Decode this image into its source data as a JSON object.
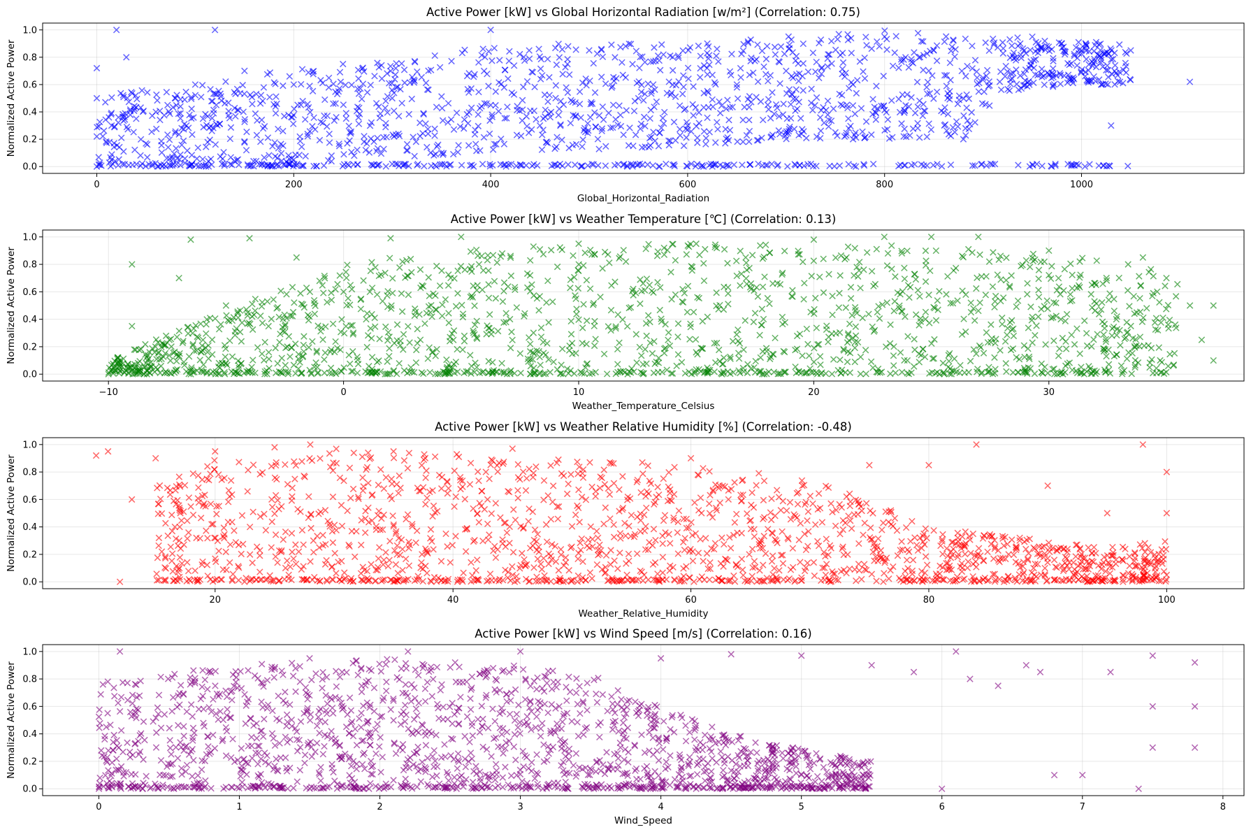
{
  "chart_data": [
    {
      "type": "scatter",
      "title": "Active Power [kW] vs Global Horizontal Radiation [w/m²] (Correlation: 0.75)",
      "xlabel": "Global_Horizontal_Radiation",
      "ylabel": "Normalized Active Power",
      "xlim": [
        -55,
        1165
      ],
      "ylim": [
        -0.05,
        1.05
      ],
      "xticks": [
        0,
        200,
        400,
        600,
        800,
        1000
      ],
      "yticks": [
        0.0,
        0.2,
        0.4,
        0.6,
        0.8,
        1.0
      ],
      "color": "#0000ff",
      "marker": "x",
      "alpha": 0.6,
      "grid": true,
      "correlation": 0.75,
      "series": [
        {
          "points": [
            [
              0,
              0
            ],
            [
              0,
              0.22
            ],
            [
              0,
              0.5
            ],
            [
              0,
              0.72
            ],
            [
              15,
              0.3
            ],
            [
              20,
              1.0
            ],
            [
              25,
              0.21
            ],
            [
              30,
              0.8
            ],
            [
              40,
              0.35
            ],
            [
              60,
              0.4
            ],
            [
              80,
              0.5
            ],
            [
              100,
              0.6
            ],
            [
              120,
              1.0
            ],
            [
              150,
              0.7
            ],
            [
              200,
              0.6
            ],
            [
              200,
              0.05
            ],
            [
              250,
              0.75
            ],
            [
              300,
              0.5
            ],
            [
              350,
              0.1
            ],
            [
              400,
              1.0
            ],
            [
              400,
              0.45
            ],
            [
              450,
              0.3
            ],
            [
              500,
              0.85
            ],
            [
              550,
              0.5
            ],
            [
              600,
              0.3
            ],
            [
              620,
              0.9
            ],
            [
              650,
              0.6
            ],
            [
              700,
              0.7
            ],
            [
              750,
              0.25
            ],
            [
              800,
              0.95
            ],
            [
              850,
              0.85
            ],
            [
              880,
              0.2
            ],
            [
              900,
              0.65
            ],
            [
              950,
              0.95
            ],
            [
              980,
              0.9
            ],
            [
              1000,
              0.85
            ],
            [
              1020,
              0.6
            ],
            [
              1030,
              0.3
            ],
            [
              1050,
              0.85
            ],
            [
              1110,
              0.62
            ]
          ],
          "envelope": [
            [
              0,
              0.0,
              0.7
            ],
            [
              50,
              0.0,
              0.55
            ],
            [
              100,
              0.0,
              0.6
            ],
            [
              200,
              0.0,
              0.72
            ],
            [
              250,
              0.05,
              0.72
            ],
            [
              400,
              0.1,
              0.9
            ],
            [
              600,
              0.15,
              0.9
            ],
            [
              700,
              0.2,
              0.95
            ],
            [
              800,
              0.2,
              1.0
            ],
            [
              880,
              0.2,
              0.95
            ],
            [
              920,
              0.55,
              0.95
            ],
            [
              1000,
              0.6,
              0.92
            ],
            [
              1050,
              0.6,
              0.9
            ]
          ]
        }
      ]
    },
    {
      "type": "scatter",
      "title": "Active Power [kW] vs Weather Temperature [℃] (Correlation: 0.13)",
      "xlabel": "Weather_Temperature_Celsius",
      "ylabel": "Normalized Active Power",
      "xlim": [
        -12.8,
        38.3
      ],
      "ylim": [
        -0.05,
        1.05
      ],
      "xticks": [
        -10,
        0,
        10,
        20,
        30
      ],
      "yticks": [
        0.0,
        0.2,
        0.4,
        0.6,
        0.8,
        1.0
      ],
      "color": "#008000",
      "marker": "x",
      "alpha": 0.6,
      "grid": true,
      "correlation": 0.13,
      "series": [
        {
          "points": [
            [
              -10,
              0
            ],
            [
              -9.5,
              0.1
            ],
            [
              -9,
              0.8
            ],
            [
              -9,
              0.35
            ],
            [
              -8,
              0.2
            ],
            [
              -7,
              0.7
            ],
            [
              -6.5,
              0.98
            ],
            [
              -5,
              0.5
            ],
            [
              -4,
              0.99
            ],
            [
              -2,
              0.85
            ],
            [
              0,
              0.6
            ],
            [
              2,
              0.99
            ],
            [
              5,
              1.0
            ],
            [
              10,
              0.95
            ],
            [
              15,
              0.95
            ],
            [
              20,
              0.98
            ],
            [
              23,
              1.0
            ],
            [
              25,
              1.0
            ],
            [
              27,
              1.0
            ],
            [
              30,
              0.9
            ],
            [
              34,
              0.85
            ],
            [
              35,
              0.7
            ],
            [
              36,
              0.5
            ],
            [
              36.5,
              0.25
            ],
            [
              37,
              0.1
            ],
            [
              37,
              0.5
            ]
          ],
          "envelope": [
            [
              -10,
              0.0,
              0.1
            ],
            [
              -6,
              0.0,
              0.4
            ],
            [
              -3,
              0.0,
              0.6
            ],
            [
              0,
              0.0,
              0.8
            ],
            [
              2,
              0.0,
              0.85
            ],
            [
              5,
              0.0,
              0.9
            ],
            [
              10,
              0.0,
              0.95
            ],
            [
              20,
              0.0,
              0.95
            ],
            [
              25,
              0.0,
              0.93
            ],
            [
              30,
              0.0,
              0.88
            ],
            [
              34,
              0.0,
              0.8
            ],
            [
              35.5,
              0.05,
              0.7
            ]
          ]
        }
      ]
    },
    {
      "type": "scatter",
      "title": "Active Power [kW] vs Weather Relative Humidity [%] (Correlation: -0.48)",
      "xlabel": "Weather_Relative_Humidity",
      "ylabel": "Normalized Active Power",
      "xlim": [
        5.5,
        106.5
      ],
      "ylim": [
        -0.05,
        1.05
      ],
      "xticks": [
        20,
        40,
        60,
        80,
        100
      ],
      "yticks": [
        0.0,
        0.2,
        0.4,
        0.6,
        0.8,
        1.0
      ],
      "color": "#ff0000",
      "marker": "x",
      "alpha": 0.6,
      "grid": true,
      "correlation": -0.48,
      "series": [
        {
          "points": [
            [
              10,
              0.92
            ],
            [
              11,
              0.95
            ],
            [
              12,
              0.0
            ],
            [
              13,
              0.6
            ],
            [
              15,
              0.9
            ],
            [
              17,
              0.1
            ],
            [
              20,
              0.95
            ],
            [
              25,
              0.98
            ],
            [
              28,
              1.0
            ],
            [
              35,
              0.95
            ],
            [
              45,
              0.97
            ],
            [
              60,
              0.9
            ],
            [
              75,
              0.85
            ],
            [
              80,
              0.85
            ],
            [
              84,
              1.0
            ],
            [
              90,
              0.7
            ],
            [
              95,
              0.5
            ],
            [
              98,
              1.0
            ],
            [
              100,
              0.8
            ],
            [
              100,
              0.5
            ],
            [
              100,
              0.05
            ]
          ],
          "envelope": [
            [
              15,
              0.0,
              0.7
            ],
            [
              20,
              0.0,
              0.9
            ],
            [
              25,
              0.0,
              0.95
            ],
            [
              30,
              0.0,
              0.97
            ],
            [
              40,
              0.0,
              0.93
            ],
            [
              50,
              0.0,
              0.9
            ],
            [
              60,
              0.0,
              0.85
            ],
            [
              70,
              0.0,
              0.75
            ],
            [
              75,
              0.0,
              0.6
            ],
            [
              80,
              0.0,
              0.4
            ],
            [
              85,
              0.0,
              0.35
            ],
            [
              90,
              0.0,
              0.3
            ],
            [
              95,
              0.0,
              0.25
            ],
            [
              100,
              0.0,
              0.3
            ]
          ]
        }
      ]
    },
    {
      "type": "scatter",
      "title": "Active Power [kW] vs Wind Speed [m/s] (Correlation: 0.16)",
      "xlabel": "Wind_Speed",
      "ylabel": "Normalized Active Power",
      "xlim": [
        -0.4,
        8.15
      ],
      "ylim": [
        -0.05,
        1.05
      ],
      "xticks": [
        0,
        1,
        2,
        3,
        4,
        5,
        6,
        7,
        8
      ],
      "yticks": [
        0.0,
        0.2,
        0.4,
        0.6,
        0.8,
        1.0
      ],
      "color": "#800080",
      "marker": "x",
      "alpha": 0.6,
      "grid": true,
      "correlation": 0.16,
      "series": [
        {
          "points": [
            [
              0.15,
              1.0
            ],
            [
              1.5,
              0.95
            ],
            [
              2.2,
              1.0
            ],
            [
              3,
              1.0
            ],
            [
              4,
              0.95
            ],
            [
              4.5,
              0.98
            ],
            [
              5,
              0.97
            ],
            [
              5.5,
              0.9
            ],
            [
              5.8,
              0.85
            ],
            [
              6.1,
              1.0
            ],
            [
              6.2,
              0.8
            ],
            [
              6.4,
              0.75
            ],
            [
              6.6,
              0.9
            ],
            [
              6.7,
              0.85
            ],
            [
              6.8,
              0.1
            ],
            [
              7,
              0.1
            ],
            [
              7.2,
              0.85
            ],
            [
              7.5,
              0.97
            ],
            [
              7.5,
              0.6
            ],
            [
              7.5,
              0.3
            ],
            [
              7.8,
              0.92
            ],
            [
              7.8,
              0.6
            ],
            [
              7.8,
              0.3
            ],
            [
              6,
              0
            ],
            [
              7.4,
              0
            ]
          ],
          "envelope": [
            [
              0,
              0.0,
              0.78
            ],
            [
              0.5,
              0.0,
              0.85
            ],
            [
              1,
              0.0,
              0.9
            ],
            [
              1.5,
              0.0,
              0.93
            ],
            [
              2,
              0.0,
              0.95
            ],
            [
              2.5,
              0.0,
              0.93
            ],
            [
              3,
              0.0,
              0.9
            ],
            [
              3.5,
              0.0,
              0.85
            ],
            [
              4,
              0.0,
              0.6
            ],
            [
              4.5,
              0.0,
              0.4
            ],
            [
              5,
              0.0,
              0.3
            ],
            [
              5.5,
              0.0,
              0.2
            ]
          ]
        }
      ]
    }
  ]
}
